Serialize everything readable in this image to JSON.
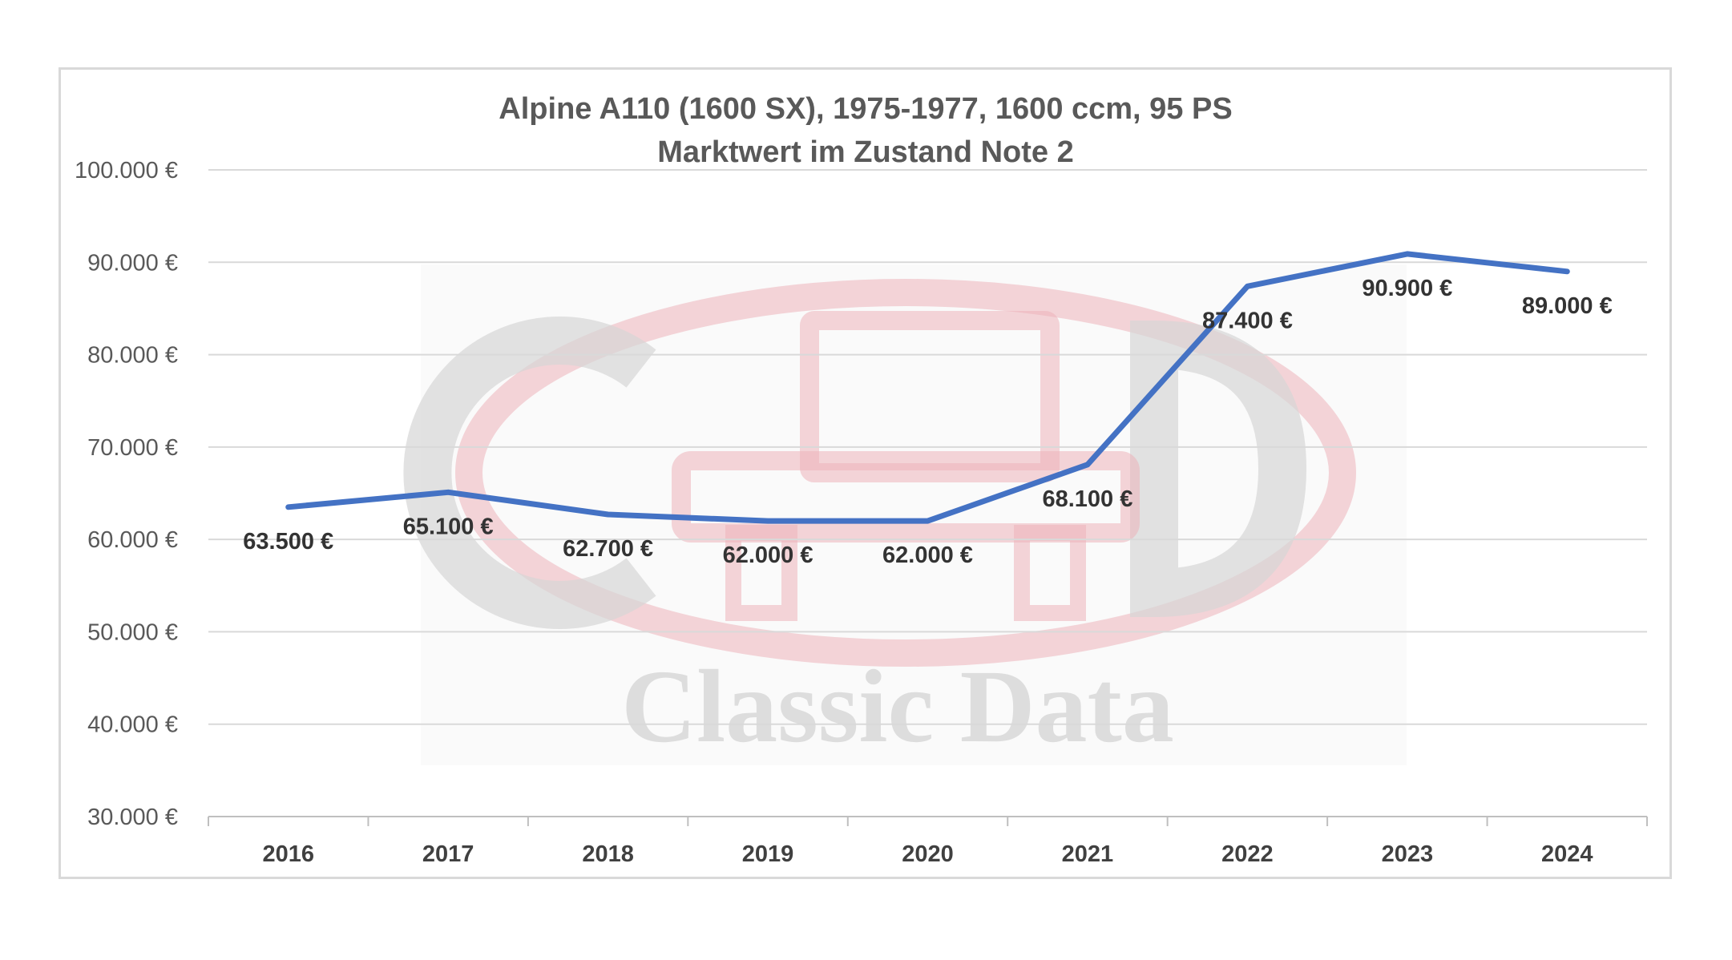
{
  "chart_data": {
    "type": "line",
    "title": "Alpine A110 (1600 SX), 1975-1977, 1600 ccm, 95 PS",
    "subtitle": "Marktwert im Zustand Note 2",
    "categories": [
      "2016",
      "2017",
      "2018",
      "2019",
      "2020",
      "2021",
      "2022",
      "2023",
      "2024"
    ],
    "series": [
      {
        "values": [
          63500,
          65100,
          62700,
          62000,
          62000,
          68100,
          87400,
          90900,
          89000
        ],
        "labels": [
          "63.500 €",
          "65.100 €",
          "62.700 €",
          "62.000 €",
          "62.000 €",
          "68.100 €",
          "87.400 €",
          "90.900 €",
          "89.000 €"
        ],
        "color": "#4472c4"
      }
    ],
    "ylim": [
      30000,
      100000
    ],
    "yticks": [
      30000,
      40000,
      50000,
      60000,
      70000,
      80000,
      90000,
      100000
    ],
    "ytick_labels": [
      "30.000 €",
      "40.000 €",
      "50.000 €",
      "60.000 €",
      "70.000 €",
      "80.000 €",
      "90.000 €",
      "100.000 €"
    ],
    "grid": true,
    "legend": "none",
    "xlabel": "",
    "ylabel": ""
  },
  "watermark": {
    "text": "Classic Data",
    "color": "#e9a6ad"
  },
  "colors": {
    "grid": "#d9d9d9",
    "axis": "#bfbfbf",
    "line": "#4472c4"
  }
}
